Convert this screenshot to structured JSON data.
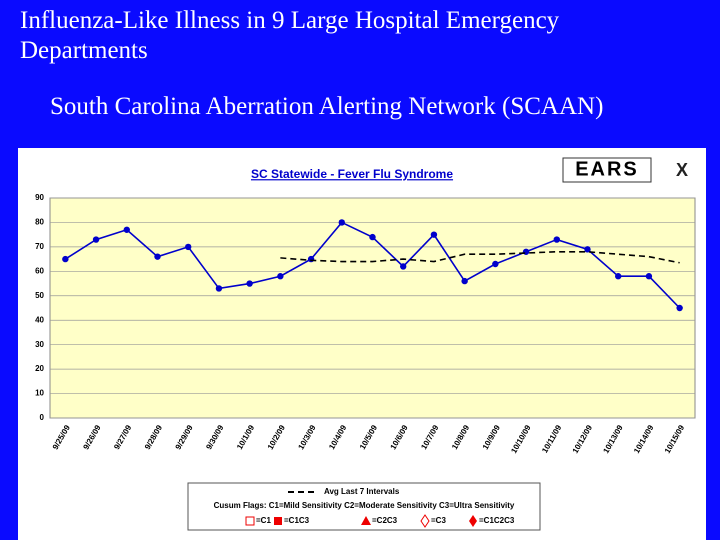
{
  "slide": {
    "title": "Influenza-Like Illness in 9 Large Hospital Emergency Departments",
    "subtitle": "South Carolina Aberration Alerting Network (SCAAN)"
  },
  "chart_data": {
    "type": "line",
    "title": "SC Statewide - Fever Flu Syndrome",
    "logo": [
      "EARS",
      "X"
    ],
    "categories": [
      "9/25/09",
      "9/26/09",
      "9/27/09",
      "9/28/09",
      "9/29/09",
      "9/30/09",
      "10/1/09",
      "10/2/09",
      "10/3/09",
      "10/4/09",
      "10/5/09",
      "10/6/09",
      "10/7/09",
      "10/8/09",
      "10/9/09",
      "10/10/09",
      "10/11/09",
      "10/12/09",
      "10/13/09",
      "10/14/09",
      "10/15/09"
    ],
    "series": [
      {
        "color": "#0000cc",
        "markers": true,
        "dashed": false,
        "values": [
          65,
          73,
          77,
          66,
          70,
          53,
          55,
          58,
          65,
          80,
          74,
          62,
          75,
          56,
          63,
          68,
          73,
          69,
          58,
          58,
          45
        ]
      },
      {
        "name": "Avg Last 7 Intervals",
        "color": "#000000",
        "markers": false,
        "dashed": true,
        "values": [
          null,
          null,
          null,
          null,
          null,
          null,
          null,
          65.5,
          64.5,
          64,
          64,
          65,
          64,
          67,
          67,
          67.5,
          68,
          68,
          67,
          66,
          63.5
        ]
      }
    ],
    "flags": {
      "title": "Cusum Flags: C1=Mild Sensitivity  C2=Moderate Sensitivity  C3=Ultra Sensitivity",
      "items": [
        "=C1",
        "=C1C3",
        "=C2C3",
        "=C3",
        "=C1C2C3"
      ]
    },
    "ylim": [
      0,
      90
    ],
    "yticks": [
      0,
      10,
      20,
      30,
      40,
      50,
      60,
      70,
      80,
      90
    ],
    "grid": true,
    "plot_background": "#ffffc8"
  }
}
